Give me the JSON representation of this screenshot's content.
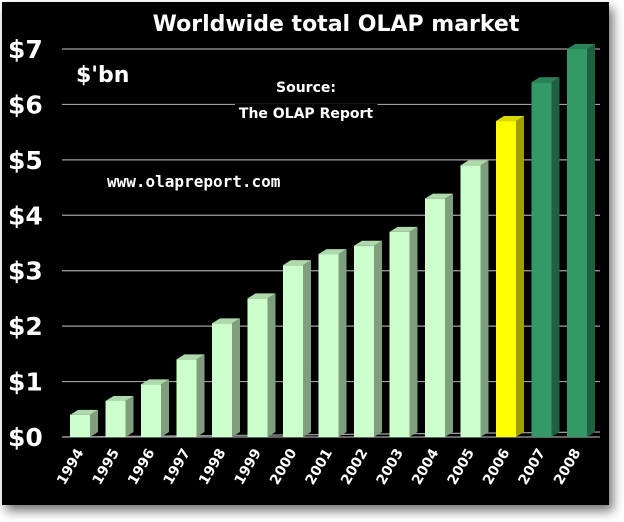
{
  "chart_data": {
    "type": "bar",
    "title": "Worldwide total OLAP market",
    "unit_label": "$'bn",
    "annotations": {
      "source_line1": "Source:",
      "source_line2": "The OLAP Report",
      "url": "www.olapreport.com"
    },
    "categories": [
      "1994",
      "1995",
      "1996",
      "1997",
      "1998",
      "1999",
      "2000",
      "2001",
      "2002",
      "2003",
      "2004",
      "2005",
      "2006",
      "2007",
      "2008"
    ],
    "values": [
      0.4,
      0.65,
      0.95,
      1.4,
      2.05,
      2.5,
      3.1,
      3.3,
      3.45,
      3.7,
      4.3,
      4.9,
      5.7,
      6.4,
      7.0
    ],
    "bar_colors": [
      "#ccffcc",
      "#ccffcc",
      "#ccffcc",
      "#ccffcc",
      "#ccffcc",
      "#ccffcc",
      "#ccffcc",
      "#ccffcc",
      "#ccffcc",
      "#ccffcc",
      "#ccffcc",
      "#ccffcc",
      "#ffff00",
      "#339966",
      "#339966"
    ],
    "ylim": [
      0,
      7
    ],
    "yticks": [
      0,
      1,
      2,
      3,
      4,
      5,
      6,
      7
    ],
    "ytick_labels": [
      "$0",
      "$1",
      "$2",
      "$3",
      "$4",
      "$5",
      "$6",
      "$7"
    ],
    "grid": true,
    "xlabel": "",
    "ylabel": ""
  },
  "colors": {
    "background": "#000000",
    "text": "#ffffff",
    "grid": "#a0a0a0",
    "forecast_yellow": "#ffff00",
    "forecast_green": "#339966",
    "actual": "#ccffcc"
  }
}
